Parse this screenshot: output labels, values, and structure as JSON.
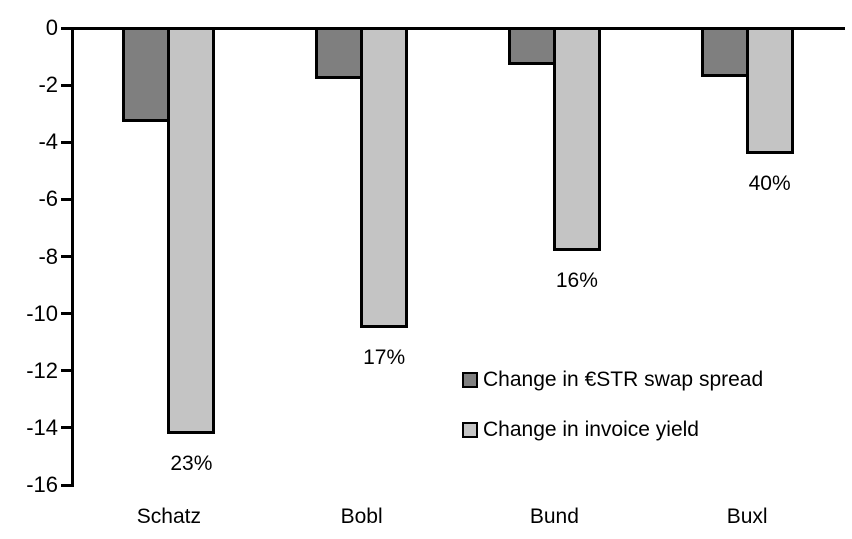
{
  "chart_data": {
    "type": "bar",
    "title": "",
    "xlabel": "",
    "ylabel": "",
    "categories": [
      "Schatz",
      "Bobl",
      "Bund",
      "Buxl"
    ],
    "series": [
      {
        "name": "Change in €STR swap spread",
        "color": "#7f7f7f",
        "values": [
          -3.3,
          -1.8,
          -1.3,
          -1.7
        ]
      },
      {
        "name": "Change in invoice yield",
        "color": "#c4c4c4",
        "values": [
          -14.2,
          -10.5,
          -7.8,
          -4.4
        ],
        "point_labels": [
          "23%",
          "17%",
          "16%",
          "40%"
        ]
      }
    ],
    "ylim": [
      -16,
      0
    ],
    "yticks": [
      0,
      -2,
      -4,
      -6,
      -8,
      -10,
      -12,
      -14,
      -16
    ],
    "grid": false,
    "legend_position": "inside-right-middle",
    "axis_color": "#000000",
    "bar_border_color": "#000000"
  }
}
